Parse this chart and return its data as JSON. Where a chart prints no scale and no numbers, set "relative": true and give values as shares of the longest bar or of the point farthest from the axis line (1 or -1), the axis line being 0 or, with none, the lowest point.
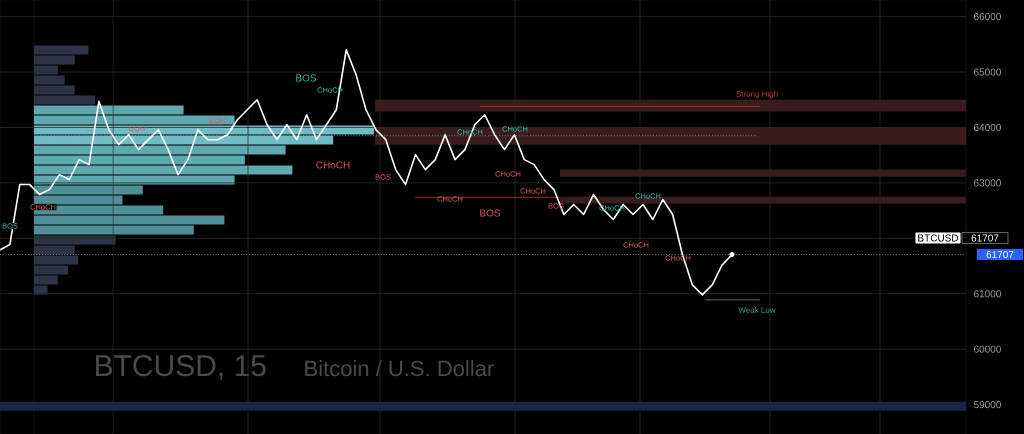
{
  "chart_data": [
    {
      "type": "line",
      "title": "BTCUSD, 15",
      "subtitle": "Bitcoin / U.S. Dollar",
      "categories": [
        null,
        null,
        null,
        null,
        null,
        null,
        null,
        null,
        null,
        null,
        null,
        null,
        null,
        null,
        null,
        null,
        null,
        null,
        null,
        null,
        null,
        null,
        null,
        null,
        null,
        null,
        null,
        null,
        null,
        null,
        null,
        null,
        null,
        null,
        null,
        null,
        null,
        null,
        null,
        null,
        null,
        null,
        null,
        null,
        null,
        null,
        null,
        null,
        null,
        null,
        null,
        null,
        null,
        null,
        null,
        null,
        null,
        null,
        null,
        null,
        null,
        null,
        null,
        null,
        null,
        null,
        null,
        null,
        null,
        null,
        null,
        null,
        null,
        null,
        null
      ],
      "series": [
        {
          "color": "#ffffff",
          "values": [
            61790,
            61890,
            62970,
            62970,
            62790,
            62880,
            63150,
            63060,
            63420,
            63330,
            64470,
            63960,
            63690,
            63870,
            63600,
            63780,
            63960,
            63600,
            63150,
            63420,
            63960,
            63780,
            63780,
            63870,
            64140,
            64320,
            64500,
            64050,
            63780,
            64050,
            63780,
            64230,
            63780,
            64050,
            64320,
            65400,
            64950,
            64320,
            63960,
            63780,
            63240,
            62970,
            63510,
            63240,
            63420,
            63870,
            63420,
            63600,
            64050,
            64230,
            63870,
            63600,
            63870,
            63420,
            63330,
            63060,
            62880,
            62430,
            62610,
            62430,
            62790,
            62520,
            62340,
            62610,
            62430,
            62610,
            62340,
            62700,
            62430,
            61700,
            61160,
            60980,
            61160,
            61520,
            61707
          ]
        }
      ],
      "ylim": [
        58470,
        66300
      ],
      "yticks": [
        59000,
        60000,
        61000,
        {
          "value": 62000,
          "label": null
        },
        63000,
        64000,
        65000,
        66000
      ],
      "tick_labels": "y",
      "grid": true,
      "bands": [
        {
          "axis": "y",
          "from": 64290,
          "to": 64500,
          "color": "#3a1c1f"
        },
        {
          "axis": "y",
          "from": 63690,
          "to": 64010,
          "color": "#3a1c1f"
        },
        {
          "axis": "y",
          "from": 63110,
          "to": 63240,
          "color": "#3a1c1f"
        },
        {
          "axis": "y",
          "from": 62630,
          "to": 62750,
          "color": "#3a1c1f"
        },
        {
          "axis": "y",
          "from": 58890,
          "to": 59050,
          "color": "#1a2744"
        }
      ],
      "ref_lines": [
        {
          "axis": "y",
          "value": 64380,
          "label": "Strong High",
          "color": "#c0392b",
          "line_style": "solid"
        },
        {
          "axis": "y",
          "value": 60890,
          "label": "Weak Low",
          "color": "#26a69a",
          "line_style": "solid"
        },
        {
          "axis": "y",
          "value": 62740,
          "color": "#c0392b",
          "line_style": "solid"
        },
        {
          "axis": "y",
          "value": 63850,
          "color": "#7fc8d0",
          "line_style": "dotted"
        },
        {
          "axis": "y",
          "value": 61707,
          "label": "61707",
          "color": "#cccccc",
          "line_style": "dotted"
        }
      ],
      "annotations": [
        "BOS",
        "CHoCH",
        "CHoCH",
        "BOS",
        "CHoCH",
        "CHoCH",
        "BOS",
        "BOS",
        "CHoCH",
        "CHoCH",
        "BOS",
        "CHoCH",
        "CHoCH",
        "CHoCH",
        "CHoCH",
        "CHoCH",
        "CHoCH",
        "EQH",
        "EQH",
        "BTCUSD",
        "61707"
      ]
    },
    {
      "type": "bar",
      "orientation": "horizontal",
      "relative": true,
      "categories": [
        null,
        null,
        null,
        null,
        null,
        null,
        null,
        null,
        null,
        null,
        null,
        null,
        null,
        null,
        null,
        null,
        null,
        null,
        null,
        null,
        null,
        null,
        null,
        null,
        null
      ],
      "values": [
        0.16,
        0.12,
        0.07,
        0.09,
        0.12,
        0.18,
        0.44,
        0.59,
        1,
        0.88,
        0.74,
        0.62,
        0.76,
        0.59,
        0.32,
        0.26,
        0.38,
        0.56,
        0.47,
        0.24,
        0.12,
        0.13,
        0.1,
        0.07,
        0.04
      ],
      "colors": [
        "#2e3448",
        "#2e3448",
        "#2e3448",
        "#2e3448",
        "#2e3448",
        "#2e3448",
        "#5fa8b0",
        "#5fa8b0",
        "#6fbcc4",
        "#6fbcc4",
        "#5fa8b0",
        "#5fa8b0",
        "#5fa8b0",
        "#5fa8b0",
        "#4f8f98",
        "#4f8f98",
        "#4f8f98",
        "#4f8f98",
        "#4f8f98",
        "#2e3448",
        "#2e3448",
        "#2e3448",
        "#2e3448",
        "#2e3448",
        "#2e3448"
      ]
    }
  ]
}
